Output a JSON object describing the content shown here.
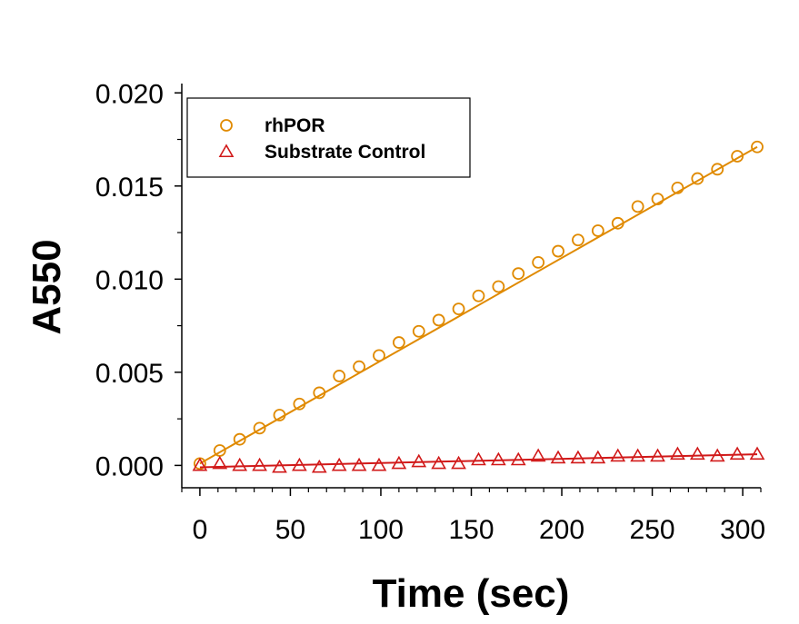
{
  "chart_data": {
    "type": "scatter",
    "xlabel": "Time (sec)",
    "ylabel": "A550",
    "xlim": [
      -10,
      310
    ],
    "ylim": [
      -0.0012,
      0.0205
    ],
    "xticks": [
      0,
      50,
      100,
      150,
      200,
      250,
      300
    ],
    "xtick_labels": [
      "0",
      "50",
      "100",
      "150",
      "200",
      "250",
      "300"
    ],
    "yticks": [
      0.0,
      0.005,
      0.01,
      0.015,
      0.02
    ],
    "ytick_labels": [
      "0.000",
      "0.005",
      "0.010",
      "0.015",
      "0.020"
    ],
    "grid": false,
    "legend": "top-left",
    "x": [
      0,
      11,
      22,
      33,
      44,
      55,
      66,
      77,
      88,
      99,
      110,
      121,
      132,
      143,
      154,
      165,
      176,
      187,
      198,
      209,
      220,
      231,
      242,
      253,
      264,
      275,
      286,
      297,
      308
    ],
    "series": [
      {
        "name": "rhPOR",
        "marker": "circle",
        "color": "#e08a00",
        "values": [
          0.0001,
          0.0008,
          0.0014,
          0.002,
          0.0027,
          0.0033,
          0.0039,
          0.0048,
          0.0053,
          0.0059,
          0.0066,
          0.0072,
          0.0078,
          0.0084,
          0.0091,
          0.0096,
          0.0103,
          0.0109,
          0.0115,
          0.0121,
          0.0126,
          0.013,
          0.0139,
          0.0143,
          0.0149,
          0.0154,
          0.0159,
          0.0166,
          0.0171
        ],
        "fit": [
          0.0001,
          0.0171
        ]
      },
      {
        "name": "Substrate Control",
        "marker": "triangle",
        "color": "#d11919",
        "values": [
          0.0,
          0.0001,
          0.0,
          0.0,
          -0.0001,
          0.0,
          -0.0001,
          0.0,
          0.0,
          0.0,
          0.0001,
          0.0002,
          0.0001,
          0.0001,
          0.0003,
          0.0003,
          0.0003,
          0.0005,
          0.0004,
          0.0004,
          0.0004,
          0.0005,
          0.0005,
          0.0005,
          0.0006,
          0.0006,
          0.0005,
          0.0006,
          0.0006
        ],
        "fit": [
          -0.0001,
          0.0006
        ]
      }
    ]
  }
}
